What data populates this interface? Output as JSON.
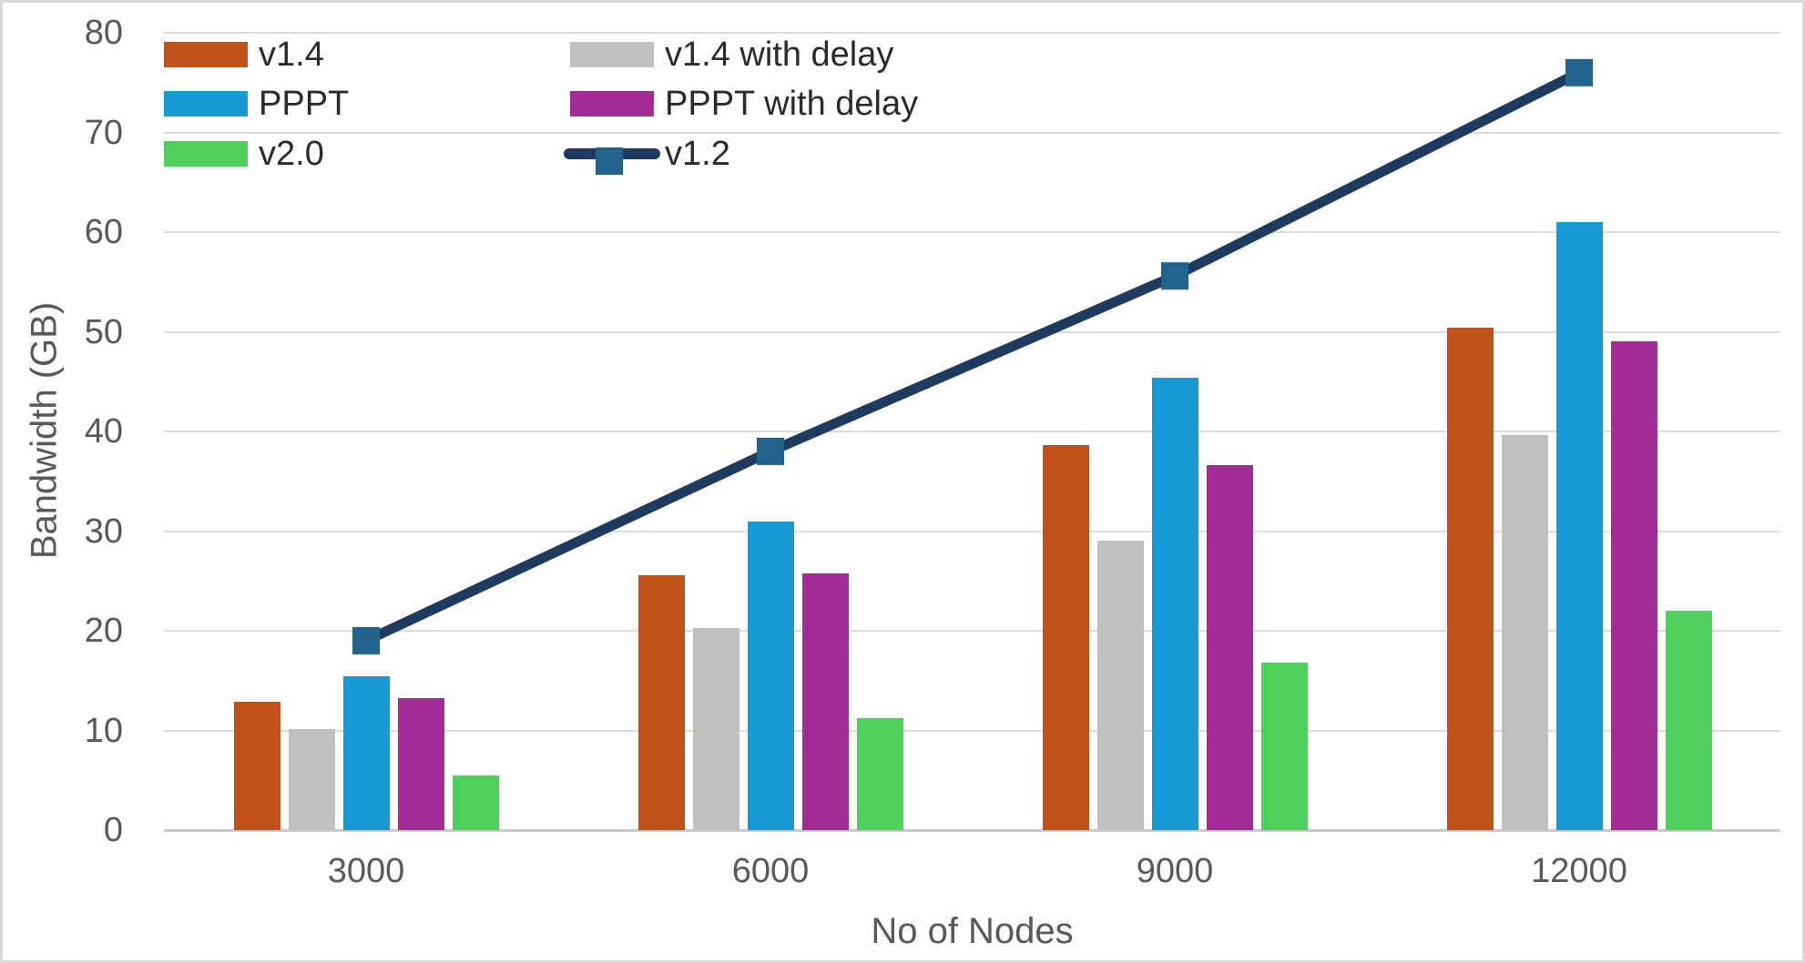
{
  "chart_data": {
    "type": "bar+line combo",
    "xlabel": "No of Nodes",
    "ylabel": "Bandwidth (GB)",
    "categories": [
      "3000",
      "6000",
      "9000",
      "12000"
    ],
    "ylim": [
      0,
      80
    ],
    "y_ticks": [
      0,
      10,
      20,
      30,
      40,
      50,
      60,
      70,
      80
    ],
    "grid": "horizontal gridlines on, light gray",
    "legend_position": "top-left inside plot, two columns",
    "bar_series": [
      {
        "name": "v1.4",
        "color": "#c1511b",
        "values": [
          12.9,
          25.6,
          38.6,
          50.4
        ]
      },
      {
        "name": "v1.4 with delay",
        "color": "#c0c0c0",
        "values": [
          10.1,
          20.3,
          29.0,
          39.6
        ]
      },
      {
        "name": "PPPT",
        "color": "#1699d5",
        "values": [
          15.4,
          31.0,
          45.4,
          61.0
        ]
      },
      {
        "name": "PPPT with delay",
        "color": "#a32b99",
        "values": [
          13.2,
          25.8,
          36.6,
          49.0
        ]
      },
      {
        "name": "v2.0",
        "color": "#4dd05a",
        "values": [
          5.5,
          11.2,
          16.8,
          22.0
        ]
      }
    ],
    "line_series": {
      "name": "v1.2",
      "color": "#1e3a5f",
      "marker": "square",
      "marker_color": "#20638c",
      "values": [
        19.0,
        38.0,
        55.6,
        76.0
      ]
    }
  },
  "colors": {
    "gridline": "#dcdcdc",
    "axis_text": "#595959",
    "legend_text": "#2b2b2b",
    "background": "#ffffff",
    "frame_border": "#d9d9d9"
  }
}
